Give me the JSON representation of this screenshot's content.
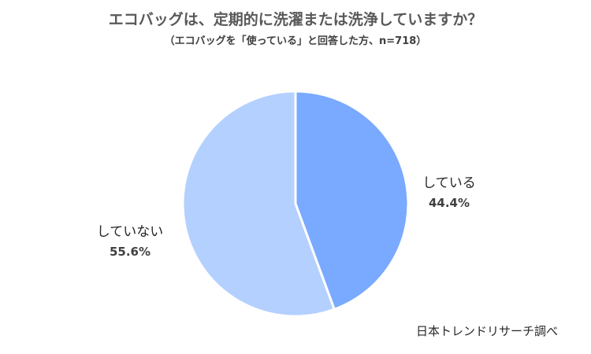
{
  "chart_data": {
    "type": "pie",
    "title": "エコバッグは、定期的に洗濯または洗浄していますか？",
    "subtitle": "（エコバッグを「使っている」と回答した方、n=718）",
    "start_angle_deg": 0,
    "direction": "clockwise",
    "legend": "none",
    "slices": [
      {
        "label": "している",
        "value": 44.4,
        "value_label": "44.4%",
        "color": "#79aaff"
      },
      {
        "label": "していない",
        "value": 55.6,
        "value_label": "55.6%",
        "color": "#b3d0ff"
      }
    ],
    "border_color": "#ffffff"
  },
  "source": "日本トレンドリサーチ調べ"
}
